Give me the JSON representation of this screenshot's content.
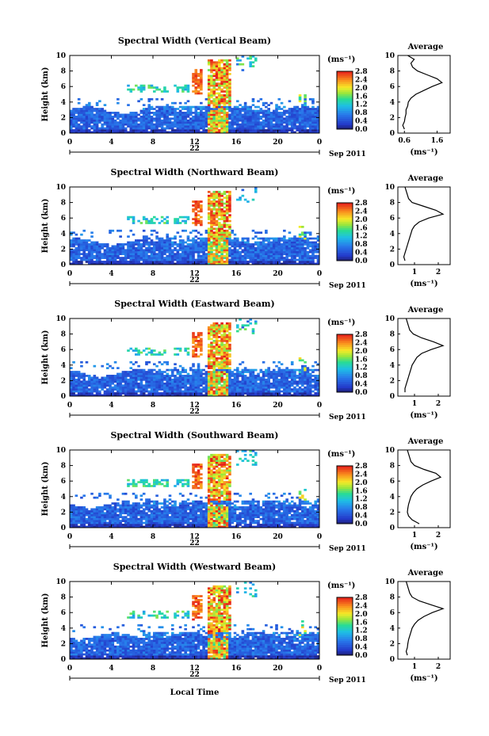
{
  "chart_data": [
    {
      "type": "heatmap",
      "title": "Spectral Width (Vertical Beam)",
      "ylabel": "Height (km)",
      "unit_label": "(ms⁻¹)",
      "date_day": "22",
      "date_tail": "Sep 2011",
      "xlim": [
        0,
        24
      ],
      "ylim": [
        0,
        10
      ],
      "xticks": [
        "0",
        "4",
        "8",
        "12",
        "16",
        "20",
        "0"
      ],
      "yticks": [
        "0",
        "2",
        "4",
        "6",
        "8",
        "10"
      ],
      "colorbar": {
        "ticks": [
          "0.0",
          "0.4",
          "0.8",
          "1.2",
          "1.6",
          "2.0",
          "2.4",
          "2.8"
        ],
        "range": [
          0,
          2.8
        ]
      },
      "profile": {
        "title": "Average",
        "xlabel": "(ms⁻¹)",
        "xticks": [
          "0.6",
          "1.6"
        ],
        "xlim": [
          0.4,
          2.0
        ],
        "heights": [
          0.5,
          1,
          1.5,
          2,
          2.5,
          3,
          3.5,
          4,
          4.5,
          5,
          5.5,
          6,
          6.5,
          7,
          7.5,
          8,
          8.5,
          9,
          9.5,
          10
        ],
        "values": [
          0.6,
          0.55,
          0.6,
          0.62,
          0.65,
          0.65,
          0.7,
          0.72,
          0.8,
          0.95,
          1.2,
          1.45,
          1.75,
          1.6,
          1.3,
          1.0,
          0.85,
          0.8,
          0.9,
          0.7
        ]
      }
    },
    {
      "type": "heatmap",
      "title": "Spectral Width (Northward Beam)",
      "ylabel": "Height (km)",
      "unit_label": "(ms⁻¹)",
      "date_day": "22",
      "date_tail": "Sep 2011",
      "xlim": [
        0,
        24
      ],
      "ylim": [
        0,
        10
      ],
      "xticks": [
        "0",
        "4",
        "8",
        "12",
        "16",
        "20",
        "0"
      ],
      "yticks": [
        "0",
        "2",
        "4",
        "6",
        "8",
        "10"
      ],
      "colorbar": {
        "ticks": [
          "0.0",
          "0.4",
          "0.8",
          "1.2",
          "1.6",
          "2.0",
          "2.4",
          "2.8"
        ],
        "range": [
          0,
          2.8
        ]
      },
      "profile": {
        "title": "Average",
        "xlabel": "(ms⁻¹)",
        "xticks": [
          "1",
          "2"
        ],
        "xlim": [
          0.3,
          2.5
        ],
        "heights": [
          0.5,
          1,
          1.5,
          2,
          2.5,
          3,
          3.5,
          4,
          4.5,
          5,
          5.5,
          6,
          6.5,
          7,
          7.5,
          8,
          8.5,
          9,
          9.5,
          10
        ],
        "values": [
          0.6,
          0.55,
          0.6,
          0.65,
          0.7,
          0.75,
          0.8,
          0.85,
          0.9,
          1.0,
          1.2,
          1.6,
          2.2,
          1.9,
          1.4,
          0.9,
          0.75,
          0.7,
          0.65,
          0.6
        ]
      }
    },
    {
      "type": "heatmap",
      "title": "Spectral Width (Eastward Beam)",
      "ylabel": "Height (km)",
      "unit_label": "(ms⁻¹)",
      "date_day": "22",
      "date_tail": "Sep 2011",
      "xlim": [
        0,
        24
      ],
      "ylim": [
        0,
        10
      ],
      "xticks": [
        "0",
        "4",
        "8",
        "12",
        "16",
        "20",
        "0"
      ],
      "yticks": [
        "0",
        "2",
        "4",
        "6",
        "8",
        "10"
      ],
      "colorbar": {
        "ticks": [
          "0.0",
          "0.4",
          "0.8",
          "1.2",
          "1.6",
          "2.0",
          "2.4",
          "2.8"
        ],
        "range": [
          0,
          2.8
        ]
      },
      "profile": {
        "title": "Average",
        "xlabel": "(ms⁻¹)",
        "xticks": [
          "1",
          "2"
        ],
        "xlim": [
          0.3,
          2.5
        ],
        "heights": [
          0.5,
          1,
          1.5,
          2,
          2.5,
          3,
          3.5,
          4,
          4.5,
          5,
          5.5,
          6,
          6.5,
          7,
          7.5,
          8,
          8.5,
          9,
          9.5,
          10
        ],
        "values": [
          0.6,
          0.6,
          0.65,
          0.7,
          0.75,
          0.8,
          0.85,
          0.9,
          1.0,
          1.1,
          1.3,
          1.7,
          2.2,
          1.8,
          1.3,
          0.95,
          0.8,
          0.75,
          0.7,
          0.65
        ]
      }
    },
    {
      "type": "heatmap",
      "title": "Spectral Width (Southward Beam)",
      "ylabel": "Height (km)",
      "unit_label": "(ms⁻¹)",
      "date_day": "22",
      "date_tail": "Sep 2011",
      "xlim": [
        0,
        24
      ],
      "ylim": [
        0,
        10
      ],
      "xticks": [
        "0",
        "4",
        "8",
        "12",
        "16",
        "20",
        "0"
      ],
      "yticks": [
        "0",
        "2",
        "4",
        "6",
        "8",
        "10"
      ],
      "colorbar": {
        "ticks": [
          "0.0",
          "0.4",
          "0.8",
          "1.2",
          "1.6",
          "2.0",
          "2.4",
          "2.8"
        ],
        "range": [
          0,
          2.8
        ]
      },
      "profile": {
        "title": "Average",
        "xlabel": "(ms⁻¹)",
        "xticks": [
          "1",
          "2"
        ],
        "xlim": [
          0.3,
          2.5
        ],
        "heights": [
          0.5,
          1,
          1.5,
          2,
          2.5,
          3,
          3.5,
          4,
          4.5,
          5,
          5.5,
          6,
          6.5,
          7,
          7.5,
          8,
          8.5,
          9,
          9.5,
          10
        ],
        "values": [
          1.2,
          0.9,
          0.75,
          0.7,
          0.72,
          0.75,
          0.8,
          0.85,
          0.95,
          1.1,
          1.35,
          1.7,
          2.1,
          1.9,
          1.4,
          1.0,
          0.85,
          0.8,
          0.75,
          0.7
        ]
      }
    },
    {
      "type": "heatmap",
      "title": "Spectral Width (Westward Beam)",
      "ylabel": "Height (km)",
      "unit_label": "(ms⁻¹)",
      "date_day": "22",
      "date_tail": "Sep 2011",
      "xlabel": "Local Time",
      "xlim": [
        0,
        24
      ],
      "ylim": [
        0,
        10
      ],
      "xticks": [
        "0",
        "4",
        "8",
        "12",
        "16",
        "20",
        "0"
      ],
      "yticks": [
        "0",
        "2",
        "4",
        "6",
        "8",
        "10"
      ],
      "colorbar": {
        "ticks": [
          "0.0",
          "0.4",
          "0.8",
          "1.2",
          "1.6",
          "2.0",
          "2.4",
          "2.8"
        ],
        "range": [
          0,
          2.8
        ]
      },
      "profile": {
        "title": "Average",
        "xlabel": "(ms⁻¹)",
        "xticks": [
          "1",
          "2"
        ],
        "xlim": [
          0.3,
          2.5
        ],
        "heights": [
          0.5,
          1,
          1.5,
          2,
          2.5,
          3,
          3.5,
          4,
          4.5,
          5,
          5.5,
          6,
          6.5,
          7,
          7.5,
          8,
          8.5,
          9,
          9.5,
          10
        ],
        "values": [
          0.7,
          0.65,
          0.7,
          0.72,
          0.75,
          0.8,
          0.85,
          0.9,
          1.0,
          1.15,
          1.4,
          1.75,
          2.2,
          1.7,
          1.2,
          0.9,
          0.8,
          0.75,
          0.7,
          0.65
        ]
      }
    }
  ]
}
